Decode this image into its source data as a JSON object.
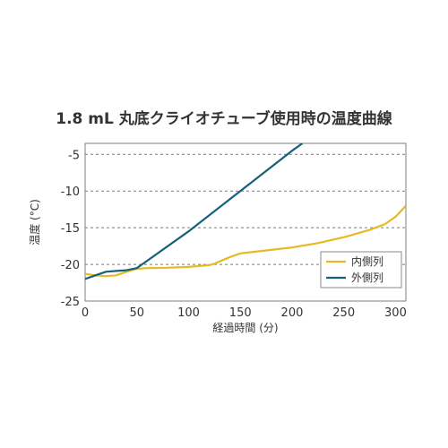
{
  "chart_data": {
    "type": "line",
    "title": "1.8 mL 丸底クライオチューブ使用時の温度曲線",
    "xlabel": "経過時間 (分)",
    "ylabel": "温度 (°C)",
    "xlim": [
      0,
      310
    ],
    "ylim": [
      -25,
      -3.5
    ],
    "xticks": [
      0,
      50,
      100,
      150,
      200,
      250,
      300
    ],
    "yticks": [
      -25,
      -20,
      -15,
      -10,
      -5
    ],
    "grid": "horizontal-dashed",
    "legend_position": "bottom-right",
    "series": [
      {
        "name": "内側列",
        "color": "#e8b920",
        "x": [
          0,
          10,
          20,
          30,
          40,
          50,
          60,
          80,
          100,
          120,
          125,
          140,
          150,
          175,
          200,
          225,
          250,
          275,
          290,
          300,
          310
        ],
        "y": [
          -21.3,
          -21.5,
          -21.6,
          -21.5,
          -21.0,
          -20.6,
          -20.5,
          -20.45,
          -20.35,
          -20.1,
          -19.9,
          -19.0,
          -18.5,
          -18.1,
          -17.7,
          -17.1,
          -16.3,
          -15.3,
          -14.5,
          -13.5,
          -12.0
        ]
      },
      {
        "name": "外側列",
        "color": "#16617a",
        "x": [
          0,
          10,
          20,
          30,
          40,
          50,
          55,
          100,
          150,
          200,
          210
        ],
        "y": [
          -22.0,
          -21.5,
          -21.0,
          -20.9,
          -20.8,
          -20.5,
          -20.0,
          -15.5,
          -10.0,
          -4.5,
          -3.5
        ]
      }
    ]
  }
}
